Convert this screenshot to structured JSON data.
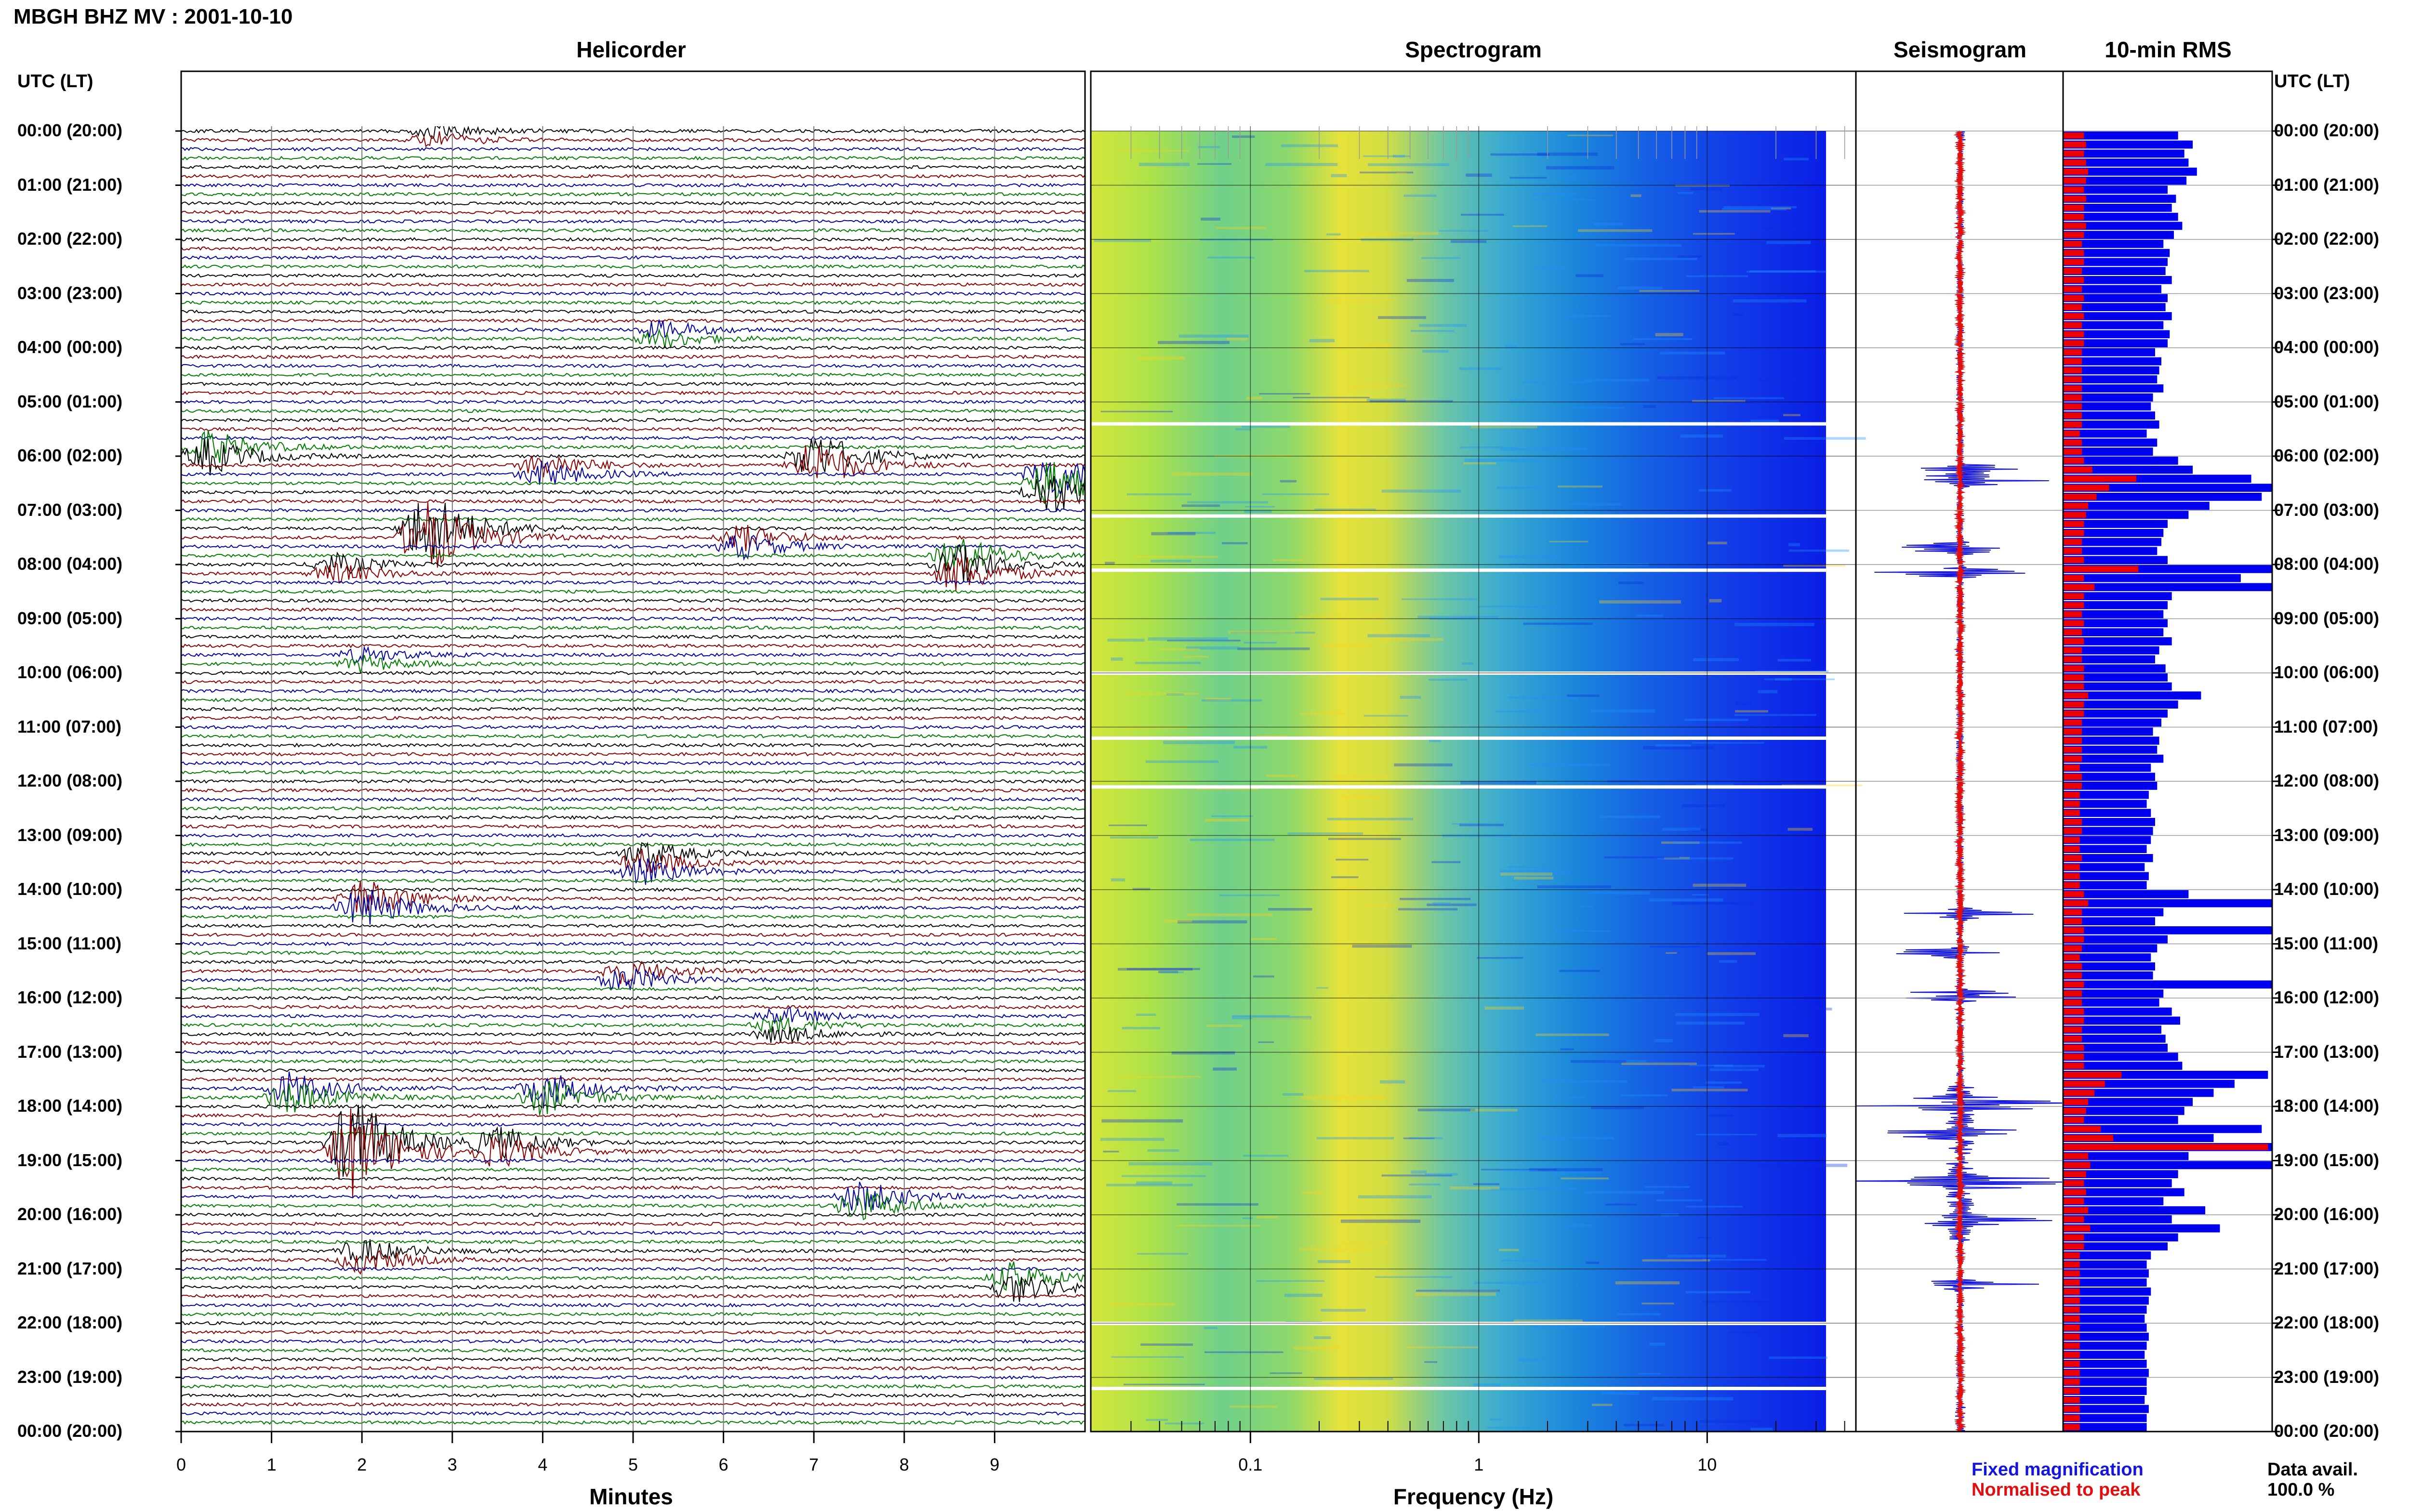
{
  "header": {
    "title": "MBGH BHZ MV : 2001-10-10",
    "utc_label_left": "UTC (LT)",
    "utc_label_right": "UTC (LT)"
  },
  "panels": {
    "helicorder": "Helicorder",
    "spectrogram": "Spectrogram",
    "seismogram": "Seismogram",
    "rms": "10-min RMS"
  },
  "hours": [
    "00:00 (20:00)",
    "01:00 (21:00)",
    "02:00 (22:00)",
    "03:00 (23:00)",
    "04:00 (00:00)",
    "05:00 (01:00)",
    "06:00 (02:00)",
    "07:00 (03:00)",
    "08:00 (04:00)",
    "09:00 (05:00)",
    "10:00 (06:00)",
    "11:00 (07:00)",
    "12:00 (08:00)",
    "13:00 (09:00)",
    "14:00 (10:00)",
    "15:00 (11:00)",
    "16:00 (12:00)",
    "17:00 (13:00)",
    "18:00 (14:00)",
    "19:00 (15:00)",
    "20:00 (16:00)",
    "21:00 (17:00)",
    "22:00 (18:00)",
    "23:00 (19:00)",
    "00:00 (20:00)"
  ],
  "helicorder_axis": {
    "label": "Minutes",
    "ticks": [
      "0",
      "1",
      "2",
      "3",
      "4",
      "5",
      "6",
      "7",
      "8",
      "9"
    ]
  },
  "spectrogram_axis": {
    "label": "Frequency (Hz)",
    "ticks": [
      "0.1",
      "1",
      "10"
    ]
  },
  "legend": {
    "fixed": "Fixed magnification",
    "normalised": "Normalised to peak",
    "fixed_color": "#1515e0",
    "normalised_color": "#e01010"
  },
  "availability": {
    "label": "Data avail.",
    "value": "100.0 %"
  },
  "colors": {
    "trace_cycle": [
      "#000000",
      "#8b0000",
      "#0000a0",
      "#007a00"
    ],
    "rms_fixed": "#0000ee",
    "rms_normalised": "#ee0000"
  },
  "chart_data": [
    {
      "type": "line",
      "title": "Helicorder",
      "xlabel": "Minutes",
      "xlim": [
        0,
        10
      ],
      "ylabel": "UTC (LT)",
      "rows_per_hour": 6,
      "events": [
        {
          "hour": 0.05,
          "minute": 2.8,
          "amp": 0.6
        },
        {
          "hour": 3.7,
          "minute": 5.3,
          "amp": 0.7
        },
        {
          "hour": 5.9,
          "minute": 0.3,
          "amp": 1.4
        },
        {
          "hour": 6.1,
          "minute": 7.0,
          "amp": 2.0
        },
        {
          "hour": 6.3,
          "minute": 4.0,
          "amp": 1.0
        },
        {
          "hour": 6.5,
          "minute": 9.6,
          "amp": 1.8
        },
        {
          "hour": 7.4,
          "minute": 2.7,
          "amp": 3.0
        },
        {
          "hour": 7.6,
          "minute": 6.2,
          "amp": 1.0
        },
        {
          "hour": 8.0,
          "minute": 8.6,
          "amp": 1.5
        },
        {
          "hour": 8.1,
          "minute": 1.7,
          "amp": 0.8
        },
        {
          "hour": 9.8,
          "minute": 2.0,
          "amp": 0.6
        },
        {
          "hour": 13.5,
          "minute": 5.1,
          "amp": 1.0
        },
        {
          "hour": 14.3,
          "minute": 2.0,
          "amp": 1.6
        },
        {
          "hour": 15.6,
          "minute": 4.9,
          "amp": 1.0
        },
        {
          "hour": 16.5,
          "minute": 6.6,
          "amp": 0.7
        },
        {
          "hour": 17.8,
          "minute": 1.2,
          "amp": 1.3
        },
        {
          "hour": 17.8,
          "minute": 4.0,
          "amp": 1.4
        },
        {
          "hour": 18.7,
          "minute": 1.9,
          "amp": 3.6
        },
        {
          "hour": 18.8,
          "minute": 3.5,
          "amp": 1.2
        },
        {
          "hour": 19.8,
          "minute": 7.5,
          "amp": 1.3
        },
        {
          "hour": 20.8,
          "minute": 2.0,
          "amp": 1.0
        },
        {
          "hour": 21.2,
          "minute": 9.2,
          "amp": 1.2
        }
      ]
    },
    {
      "type": "heatmap",
      "title": "Spectrogram",
      "xlabel": "Frequency (Hz)",
      "x_scale": "log",
      "xlim": [
        0.02,
        40
      ],
      "ylim_hours": [
        0,
        24
      ],
      "gaps_hours": [
        5.4,
        7.1,
        8.1,
        10.0,
        11.2,
        12.1,
        22.0,
        23.2
      ]
    },
    {
      "type": "line",
      "title": "Seismogram",
      "series": [
        {
          "name": "Fixed magnification"
        },
        {
          "name": "Normalised to peak"
        }
      ]
    },
    {
      "type": "bar",
      "title": "10-min RMS",
      "orientation": "horizontal",
      "bins_per_hour": 6,
      "series": [
        {
          "name": "Fixed magnification",
          "values": [
            0.55,
            0.62,
            0.58,
            0.6,
            0.64,
            0.59,
            0.5,
            0.54,
            0.52,
            0.55,
            0.57,
            0.53,
            0.48,
            0.51,
            0.5,
            0.49,
            0.52,
            0.47,
            0.5,
            0.49,
            0.52,
            0.48,
            0.51,
            0.5,
            0.44,
            0.47,
            0.46,
            0.45,
            0.48,
            0.43,
            0.42,
            0.44,
            0.46,
            0.4,
            0.45,
            0.43,
            0.55,
            0.62,
            0.9,
            1.0,
            0.95,
            0.7,
            0.6,
            0.5,
            0.48,
            0.47,
            0.45,
            0.5,
            1.0,
            0.85,
            1.0,
            0.52,
            0.5,
            0.48,
            0.5,
            0.48,
            0.52,
            0.46,
            0.44,
            0.49,
            0.5,
            0.52,
            0.66,
            0.55,
            0.5,
            0.47,
            0.43,
            0.46,
            0.45,
            0.48,
            0.42,
            0.44,
            0.45,
            0.41,
            0.4,
            0.42,
            0.44,
            0.43,
            0.42,
            0.4,
            0.43,
            0.39,
            0.41,
            0.4,
            0.6,
            1.0,
            0.48,
            0.44,
            1.0,
            0.5,
            0.45,
            0.42,
            0.44,
            0.43,
            1.0,
            0.48,
            0.46,
            0.52,
            0.56,
            0.47,
            0.49,
            0.5,
            0.55,
            0.57,
            0.98,
            0.82,
            0.72,
            0.62,
            0.58,
            0.55,
            0.95,
            0.72,
            1.0,
            0.6,
            1.0,
            0.55,
            0.52,
            0.58,
            0.48,
            0.68,
            0.52,
            0.75,
            0.55,
            0.5,
            0.42,
            0.4,
            0.41,
            0.4,
            0.42,
            0.41,
            0.4,
            0.39,
            0.4,
            0.41,
            0.4,
            0.39,
            0.4,
            0.41,
            0.4,
            0.4,
            0.39,
            0.41,
            0.4,
            0.4
          ]
        },
        {
          "name": "Normalised to peak",
          "values": [
            0.1,
            0.11,
            0.1,
            0.11,
            0.12,
            0.11,
            0.1,
            0.11,
            0.1,
            0.1,
            0.11,
            0.1,
            0.09,
            0.1,
            0.1,
            0.09,
            0.1,
            0.09,
            0.1,
            0.09,
            0.1,
            0.09,
            0.1,
            0.1,
            0.09,
            0.09,
            0.09,
            0.09,
            0.09,
            0.09,
            0.09,
            0.09,
            0.09,
            0.08,
            0.09,
            0.09,
            0.1,
            0.14,
            0.35,
            0.22,
            0.16,
            0.12,
            0.11,
            0.1,
            0.1,
            0.09,
            0.09,
            0.1,
            0.36,
            0.1,
            0.15,
            0.1,
            0.1,
            0.09,
            0.1,
            0.09,
            0.1,
            0.09,
            0.09,
            0.1,
            0.1,
            0.1,
            0.12,
            0.1,
            0.1,
            0.09,
            0.09,
            0.09,
            0.09,
            0.09,
            0.08,
            0.09,
            0.09,
            0.08,
            0.08,
            0.08,
            0.09,
            0.09,
            0.08,
            0.08,
            0.09,
            0.08,
            0.08,
            0.08,
            0.1,
            0.12,
            0.09,
            0.09,
            0.1,
            0.1,
            0.09,
            0.08,
            0.09,
            0.09,
            0.1,
            0.09,
            0.09,
            0.1,
            0.1,
            0.09,
            0.09,
            0.1,
            0.1,
            0.1,
            0.28,
            0.2,
            0.15,
            0.12,
            0.11,
            0.1,
            0.18,
            0.24,
            0.98,
            0.12,
            0.13,
            0.11,
            0.1,
            0.11,
            0.1,
            0.12,
            0.1,
            0.13,
            0.1,
            0.1,
            0.08,
            0.08,
            0.08,
            0.08,
            0.08,
            0.08,
            0.08,
            0.08,
            0.08,
            0.08,
            0.08,
            0.08,
            0.08,
            0.08,
            0.08,
            0.08,
            0.08,
            0.08,
            0.08,
            0.08
          ]
        }
      ]
    }
  ]
}
